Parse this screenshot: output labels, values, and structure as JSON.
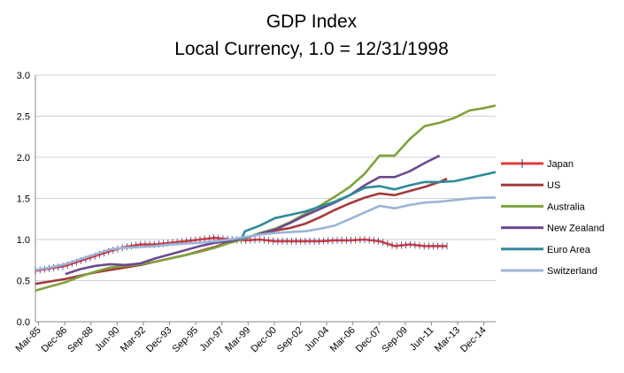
{
  "chart_data": {
    "type": "line",
    "title": "GDP Index",
    "subtitle": "Local Currency, 1.0 = 12/31/1998",
    "xlabel": "",
    "ylabel": "",
    "ylim": [
      0,
      3
    ],
    "yticks": [
      "0.0",
      "0.5",
      "1.0",
      "1.5",
      "2.0",
      "2.5",
      "3.0"
    ],
    "xlim": [
      1985.0,
      2015.75
    ],
    "xticks": [
      {
        "label": "Mar-85",
        "x": 1985.21
      },
      {
        "label": "Dec-86",
        "x": 1986.96
      },
      {
        "label": "Sep-88",
        "x": 1988.71
      },
      {
        "label": "Jun-90",
        "x": 1990.46
      },
      {
        "label": "Mar-92",
        "x": 1992.21
      },
      {
        "label": "Dec-93",
        "x": 1993.96
      },
      {
        "label": "Sep-95",
        "x": 1995.71
      },
      {
        "label": "Jun-97",
        "x": 1997.46
      },
      {
        "label": "Mar-99",
        "x": 1999.21
      },
      {
        "label": "Dec-00",
        "x": 2000.96
      },
      {
        "label": "Sep-02",
        "x": 2002.71
      },
      {
        "label": "Jun-04",
        "x": 2004.46
      },
      {
        "label": "Mar-06",
        "x": 2006.21
      },
      {
        "label": "Dec-07",
        "x": 2007.96
      },
      {
        "label": "Sep-09",
        "x": 2009.71
      },
      {
        "label": "Jun-11",
        "x": 2011.46
      },
      {
        "label": "Mar-13",
        "x": 2013.21
      },
      {
        "label": "Dec-14",
        "x": 2014.96
      }
    ],
    "grid": "horizontal",
    "legend": "right",
    "series": [
      {
        "name": "Japan",
        "color": "#e03c3c",
        "marker": "plus",
        "points": [
          [
            1985.0,
            0.62
          ],
          [
            1986.0,
            0.65
          ],
          [
            1987.0,
            0.68
          ],
          [
            1988.0,
            0.74
          ],
          [
            1989.0,
            0.8
          ],
          [
            1990.0,
            0.86
          ],
          [
            1991.0,
            0.91
          ],
          [
            1992.0,
            0.94
          ],
          [
            1993.0,
            0.94
          ],
          [
            1994.0,
            0.96
          ],
          [
            1995.0,
            0.98
          ],
          [
            1996.0,
            1.0
          ],
          [
            1997.0,
            1.02
          ],
          [
            1998.0,
            1.0
          ],
          [
            1999.0,
            0.99
          ],
          [
            2000.0,
            1.0
          ],
          [
            2001.0,
            0.98
          ],
          [
            2002.0,
            0.98
          ],
          [
            2003.0,
            0.98
          ],
          [
            2004.0,
            0.98
          ],
          [
            2005.0,
            0.99
          ],
          [
            2006.0,
            0.99
          ],
          [
            2007.0,
            1.0
          ],
          [
            2008.0,
            0.98
          ],
          [
            2009.0,
            0.92
          ],
          [
            2010.0,
            0.94
          ],
          [
            2011.0,
            0.92
          ],
          [
            2012.0,
            0.92
          ],
          [
            2012.5,
            0.92
          ]
        ]
      },
      {
        "name": "US",
        "color": "#a33a3a",
        "marker": "none",
        "points": [
          [
            1985.0,
            0.46
          ],
          [
            1986.0,
            0.49
          ],
          [
            1987.0,
            0.52
          ],
          [
            1988.0,
            0.56
          ],
          [
            1989.0,
            0.6
          ],
          [
            1990.0,
            0.63
          ],
          [
            1991.0,
            0.66
          ],
          [
            1992.0,
            0.69
          ],
          [
            1993.0,
            0.73
          ],
          [
            1994.0,
            0.77
          ],
          [
            1995.0,
            0.81
          ],
          [
            1996.0,
            0.86
          ],
          [
            1997.0,
            0.91
          ],
          [
            1998.0,
            0.97
          ],
          [
            1999.0,
            1.02
          ],
          [
            2000.0,
            1.07
          ],
          [
            2001.0,
            1.11
          ],
          [
            2002.0,
            1.14
          ],
          [
            2003.0,
            1.19
          ],
          [
            2004.0,
            1.27
          ],
          [
            2005.0,
            1.36
          ],
          [
            2006.0,
            1.44
          ],
          [
            2007.0,
            1.51
          ],
          [
            2008.0,
            1.56
          ],
          [
            2009.0,
            1.54
          ],
          [
            2010.0,
            1.59
          ],
          [
            2011.0,
            1.64
          ],
          [
            2012.0,
            1.7
          ],
          [
            2012.5,
            1.74
          ]
        ]
      },
      {
        "name": "Australia",
        "color": "#7fa33c",
        "marker": "none",
        "points": [
          [
            1985.0,
            0.38
          ],
          [
            1986.0,
            0.43
          ],
          [
            1987.0,
            0.48
          ],
          [
            1988.0,
            0.55
          ],
          [
            1989.0,
            0.61
          ],
          [
            1990.0,
            0.66
          ],
          [
            1991.0,
            0.68
          ],
          [
            1992.0,
            0.7
          ],
          [
            1993.0,
            0.73
          ],
          [
            1994.0,
            0.77
          ],
          [
            1995.0,
            0.81
          ],
          [
            1996.0,
            0.85
          ],
          [
            1997.0,
            0.9
          ],
          [
            1998.0,
            0.96
          ],
          [
            1999.0,
            1.01
          ],
          [
            2000.0,
            1.08
          ],
          [
            2001.0,
            1.13
          ],
          [
            2002.0,
            1.21
          ],
          [
            2003.0,
            1.31
          ],
          [
            2004.0,
            1.41
          ],
          [
            2005.0,
            1.52
          ],
          [
            2006.0,
            1.64
          ],
          [
            2007.0,
            1.8
          ],
          [
            2008.0,
            2.02
          ],
          [
            2009.0,
            2.02
          ],
          [
            2010.0,
            2.22
          ],
          [
            2011.0,
            2.38
          ],
          [
            2012.0,
            2.42
          ],
          [
            2013.0,
            2.48
          ],
          [
            2014.0,
            2.57
          ],
          [
            2015.0,
            2.6
          ],
          [
            2015.75,
            2.63
          ]
        ]
      },
      {
        "name": "New Zealand",
        "color": "#6b4a8f",
        "marker": "none",
        "points": [
          [
            1987.0,
            0.58
          ],
          [
            1988.0,
            0.64
          ],
          [
            1989.0,
            0.68
          ],
          [
            1990.0,
            0.7
          ],
          [
            1991.0,
            0.69
          ],
          [
            1992.0,
            0.71
          ],
          [
            1993.0,
            0.77
          ],
          [
            1994.0,
            0.82
          ],
          [
            1995.0,
            0.87
          ],
          [
            1996.0,
            0.92
          ],
          [
            1997.0,
            0.96
          ],
          [
            1998.0,
            0.98
          ],
          [
            1999.0,
            1.02
          ],
          [
            2000.0,
            1.07
          ],
          [
            2001.0,
            1.12
          ],
          [
            2002.0,
            1.2
          ],
          [
            2003.0,
            1.29
          ],
          [
            2004.0,
            1.37
          ],
          [
            2005.0,
            1.45
          ],
          [
            2006.0,
            1.54
          ],
          [
            2007.0,
            1.66
          ],
          [
            2008.0,
            1.76
          ],
          [
            2009.0,
            1.76
          ],
          [
            2010.0,
            1.83
          ],
          [
            2011.0,
            1.93
          ],
          [
            2012.0,
            2.02
          ]
        ]
      },
      {
        "name": "Euro Area",
        "color": "#2e8a9a",
        "marker": "none",
        "points": [
          [
            1998.75,
            1.0
          ],
          [
            1999.0,
            1.1
          ],
          [
            2000.0,
            1.17
          ],
          [
            2001.0,
            1.26
          ],
          [
            2002.0,
            1.3
          ],
          [
            2003.0,
            1.34
          ],
          [
            2004.0,
            1.4
          ],
          [
            2005.0,
            1.46
          ],
          [
            2006.0,
            1.54
          ],
          [
            2007.0,
            1.63
          ],
          [
            2008.0,
            1.65
          ],
          [
            2009.0,
            1.61
          ],
          [
            2010.0,
            1.66
          ],
          [
            2011.0,
            1.7
          ],
          [
            2012.0,
            1.7
          ],
          [
            2013.0,
            1.71
          ],
          [
            2014.0,
            1.75
          ],
          [
            2015.0,
            1.79
          ],
          [
            2015.75,
            1.82
          ]
        ]
      },
      {
        "name": "Switzerland",
        "color": "#9ab4d6",
        "marker": "none",
        "points": [
          [
            1985.0,
            0.63
          ],
          [
            1986.0,
            0.66
          ],
          [
            1987.0,
            0.7
          ],
          [
            1988.0,
            0.76
          ],
          [
            1989.0,
            0.82
          ],
          [
            1990.0,
            0.88
          ],
          [
            1991.0,
            0.9
          ],
          [
            1992.0,
            0.91
          ],
          [
            1993.0,
            0.92
          ],
          [
            1994.0,
            0.94
          ],
          [
            1995.0,
            0.95
          ],
          [
            1996.0,
            0.96
          ],
          [
            1997.0,
            0.98
          ],
          [
            1998.0,
            1.0
          ],
          [
            1999.0,
            1.03
          ],
          [
            2000.0,
            1.06
          ],
          [
            2001.0,
            1.08
          ],
          [
            2002.0,
            1.09
          ],
          [
            2003.0,
            1.1
          ],
          [
            2004.0,
            1.13
          ],
          [
            2005.0,
            1.17
          ],
          [
            2006.0,
            1.25
          ],
          [
            2007.0,
            1.33
          ],
          [
            2008.0,
            1.41
          ],
          [
            2009.0,
            1.38
          ],
          [
            2010.0,
            1.42
          ],
          [
            2011.0,
            1.45
          ],
          [
            2012.0,
            1.46
          ],
          [
            2013.0,
            1.48
          ],
          [
            2014.0,
            1.5
          ],
          [
            2015.0,
            1.51
          ],
          [
            2015.75,
            1.51
          ]
        ]
      }
    ]
  }
}
